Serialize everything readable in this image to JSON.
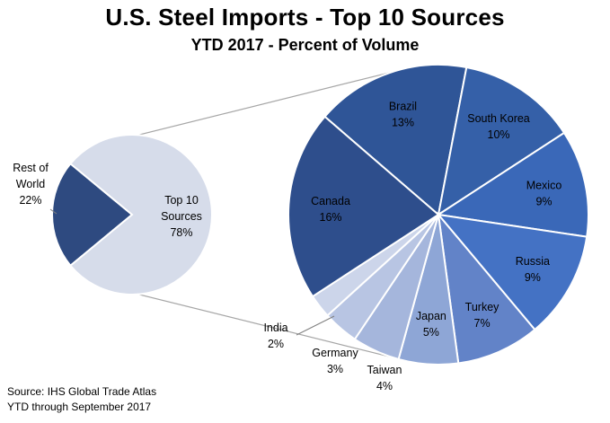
{
  "title": "U.S. Steel Imports - Top 10 Sources",
  "subtitle": "YTD 2017 - Percent of Volume",
  "source": {
    "line1": "Source: IHS Global Trade Atlas",
    "line2": "YTD through September 2017"
  },
  "chart_data": {
    "type": "pie",
    "title": "U.S. Steel Imports - Top 10 Sources",
    "subtitle": "YTD 2017 - Percent of Volume",
    "main_pie": {
      "slices": [
        {
          "label": "Rest of World",
          "value": 22,
          "display": "22%",
          "color": "#2e4a80"
        },
        {
          "label": "Top 10 Sources",
          "value": 78,
          "display": "78%",
          "color": "#d6dcea"
        }
      ]
    },
    "secondary_pie": {
      "note": "breakdown of Top 10 Sources",
      "slices": [
        {
          "label": "Brazil",
          "value": 13,
          "display": "13%",
          "color": "#2f5597"
        },
        {
          "label": "South Korea",
          "value": 10,
          "display": "10%",
          "color": "#3560a8"
        },
        {
          "label": "Mexico",
          "value": 9,
          "display": "9%",
          "color": "#3a68b8"
        },
        {
          "label": "Russia",
          "value": 9,
          "display": "9%",
          "color": "#4472c4"
        },
        {
          "label": "Turkey",
          "value": 7,
          "display": "7%",
          "color": "#6283c8"
        },
        {
          "label": "Japan",
          "value": 5,
          "display": "5%",
          "color": "#8ea6d6"
        },
        {
          "label": "Taiwan",
          "value": 4,
          "display": "4%",
          "color": "#a5b6dc"
        },
        {
          "label": "Germany",
          "value": 3,
          "display": "3%",
          "color": "#b8c5e3"
        },
        {
          "label": "India",
          "value": 2,
          "display": "2%",
          "color": "#ccd5ea"
        },
        {
          "label": "Canada",
          "value": 16,
          "display": "16%",
          "color": "#2e4e8c"
        }
      ]
    },
    "legend": "none"
  }
}
